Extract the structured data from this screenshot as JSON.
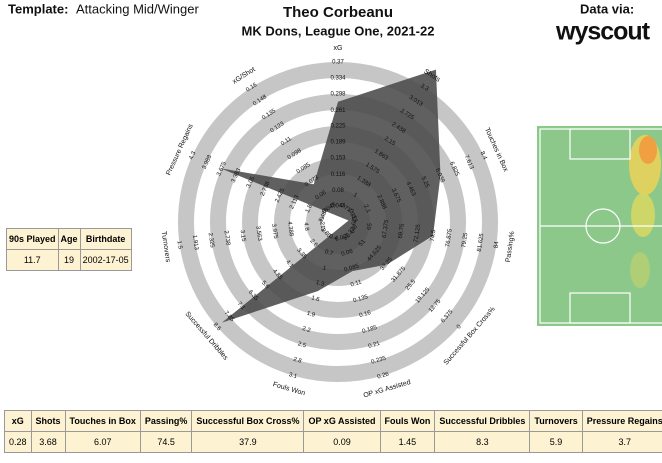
{
  "chart_data": {
    "type": "radar",
    "template_label": "Template:",
    "template": "Attacking Mid/Winger",
    "title": "Theo Corbeanu",
    "subtitle": "MK Dons, League One, 2021-22",
    "source_label": "Data via:",
    "source": "wyscout",
    "color": "#4a4a4a",
    "axes": [
      {
        "name": "xG",
        "lim": [
          0.008,
          0.37
        ],
        "ticks": [
          0.044,
          0.08,
          0.116,
          0.153,
          0.189,
          0.225,
          0.261,
          0.298,
          0.334,
          0.37
        ]
      },
      {
        "name": "Shots",
        "lim": [
          0.425,
          3.3
        ],
        "ticks": [
          0.713,
          1,
          1.288,
          1.575,
          1.863,
          2.15,
          2.438,
          2.725,
          3.013,
          3.3
        ]
      },
      {
        "name": "Touches in Box",
        "lim": [
          0.525,
          8.4
        ],
        "ticks": [
          1.313,
          2.1,
          2.888,
          3.675,
          4.463,
          5.25,
          6.038,
          6.825,
          7.613,
          8.4
        ]
      },
      {
        "name": "Passing%",
        "lim": [
          60.25,
          84
        ],
        "ticks": [
          62.625,
          65,
          67.375,
          69.75,
          72.125,
          74.5,
          76.875,
          79.25,
          81.625,
          84
        ]
      },
      {
        "name": "Successful Box Cross%",
        "lim": [
          63.75,
          0
        ],
        "ticks": [
          57.375,
          51,
          44.625,
          38.25,
          31.875,
          25.5,
          19.125,
          12.75,
          6.375,
          0
        ]
      },
      {
        "name": "OP xG Assisted",
        "lim": [
          0.01,
          0.26
        ],
        "ticks": [
          0.035,
          0.06,
          0.085,
          0.11,
          0.135,
          0.16,
          0.185,
          0.21,
          0.235,
          0.26
        ]
      },
      {
        "name": "Fouls Won",
        "lim": [
          0.1,
          3.1
        ],
        "ticks": [
          0.4,
          0.7,
          1,
          1.3,
          1.6,
          1.9,
          2.2,
          2.5,
          2.8,
          3.1
        ]
      },
      {
        "name": "Successful Dribbles",
        "lim": [
          1.1,
          8.6
        ],
        "ticks": [
          1.85,
          2.6,
          3.35,
          4.1,
          4.85,
          5.6,
          6.35,
          7.1,
          7.85,
          8.6
        ]
      },
      {
        "name": "Turnovers",
        "lim": [
          5.625,
          1.5
        ],
        "ticks": [
          5.213,
          4.8,
          4.388,
          3.975,
          3.563,
          3.15,
          2.738,
          2.325,
          1.913,
          1.5
        ]
      },
      {
        "name": "Pressure Regains",
        "lim": [
          1.175,
          4.3
        ],
        "ticks": [
          1.488,
          1.8,
          2.113,
          2.425,
          2.738,
          3.05,
          3.363,
          3.675,
          3.988,
          4.3
        ]
      },
      {
        "name": "xG/Shot",
        "lim": [
          0.035,
          0.16
        ],
        "ticks": [
          0.048,
          0.06,
          0.073,
          0.085,
          0.098,
          0.11,
          0.123,
          0.135,
          0.148,
          0.16
        ]
      }
    ],
    "values": [
      0.28,
      3.68,
      6.07,
      74.5,
      37.9,
      0.09,
      1.45,
      8.3,
      5.9,
      3.7,
      0.07
    ]
  },
  "info_table": {
    "headers": [
      "90s Played",
      "Age",
      "Birthdate"
    ],
    "row": [
      11.7,
      19,
      "2002-17-05"
    ]
  }
}
